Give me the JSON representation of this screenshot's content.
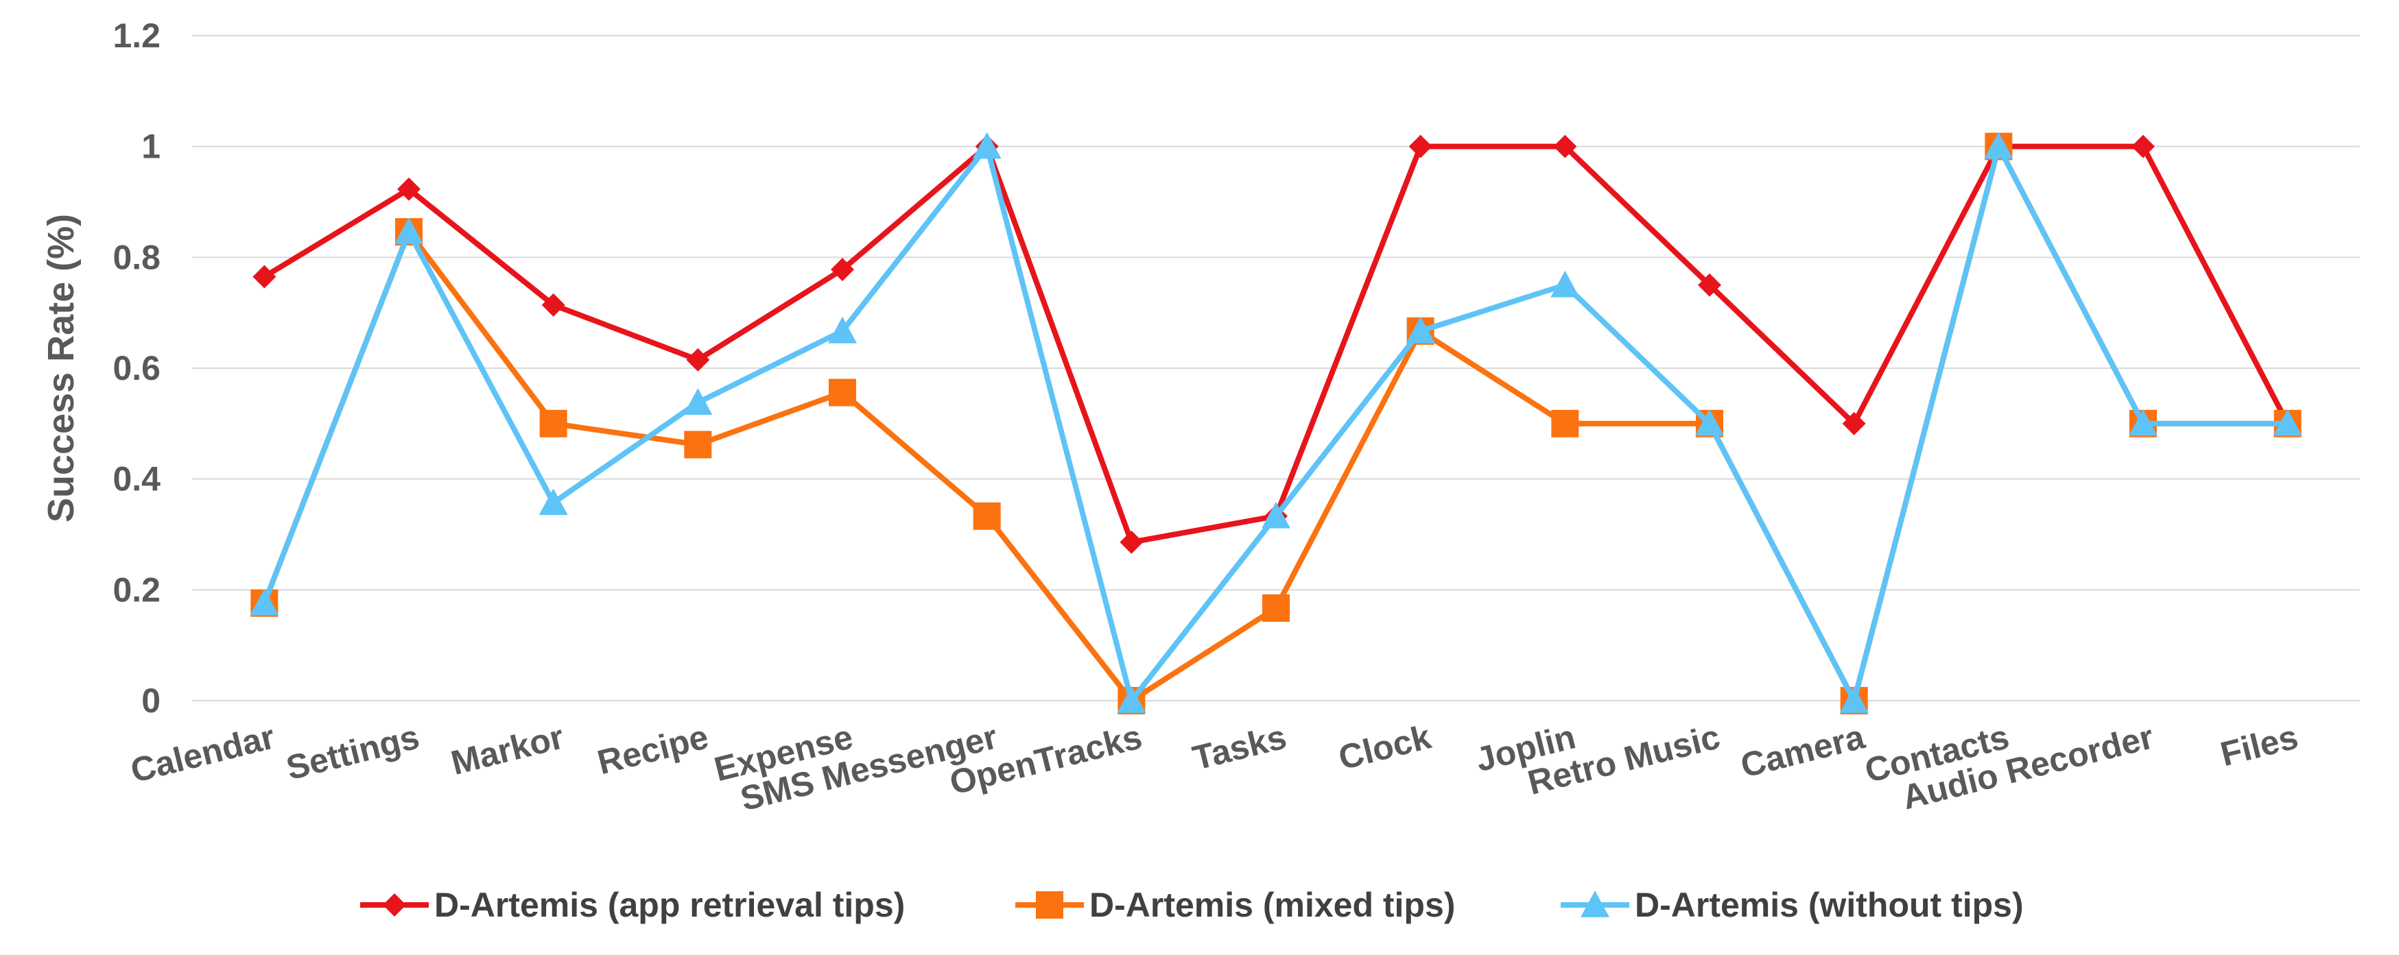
{
  "chart_data": {
    "type": "line",
    "title": "",
    "xlabel": "",
    "ylabel": "Success Rate (%)",
    "ylim": [
      0,
      1.2
    ],
    "yticks": [
      "0",
      "0.2",
      "0.4",
      "0.6",
      "0.8",
      "1",
      "1.2"
    ],
    "grid": true,
    "legend_position": "bottom",
    "categories": [
      "Calendar",
      "Settings",
      "Markor",
      "Recipe",
      "Expense",
      "SMS Messenger",
      "OpenTracks",
      "Tasks",
      "Clock",
      "Joplin",
      "Retro Music",
      "Camera",
      "Contacts",
      "Audio Recorder",
      "Files"
    ],
    "series": [
      {
        "name": "D-Artemis (app retrieval tips)",
        "color": "#e8141b",
        "marker": "diamond",
        "values": [
          0.765,
          0.923,
          0.714,
          0.615,
          0.778,
          1.0,
          0.286,
          0.333,
          1.0,
          1.0,
          0.75,
          0.5,
          1.0,
          1.0,
          0.5
        ]
      },
      {
        "name": "D-Artemis (mixed tips)",
        "color": "#fb7210",
        "marker": "square",
        "values": [
          0.176,
          0.846,
          0.5,
          0.462,
          0.556,
          0.333,
          0.0,
          0.167,
          0.667,
          0.5,
          0.5,
          0.0,
          1.0,
          0.5,
          0.5
        ]
      },
      {
        "name": "D-Artemis (without tips)",
        "color": "#5ec3f7",
        "marker": "triangle",
        "values": [
          0.176,
          0.846,
          0.357,
          0.538,
          0.667,
          1.0,
          0.0,
          0.333,
          0.667,
          0.75,
          0.5,
          0.0,
          1.0,
          0.5,
          0.5
        ]
      }
    ]
  }
}
